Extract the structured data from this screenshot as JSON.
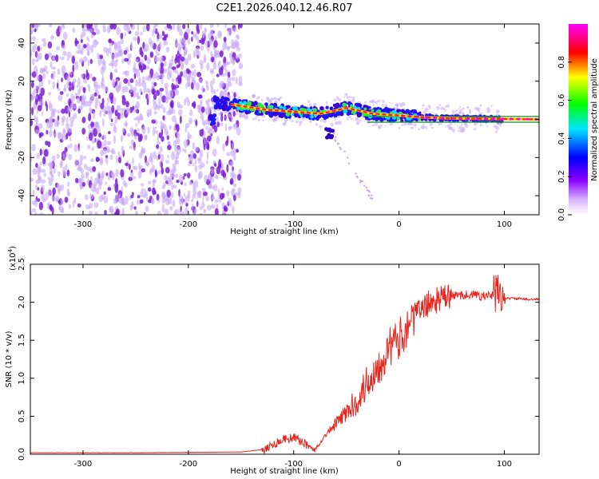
{
  "title": "C2E1.2026.040.12.46.R07",
  "colors": {
    "trace": "#e8231c",
    "scatter_light": "#c7a7f5",
    "scatter_dark": "#7b1fd6",
    "track": "#1d9c2f"
  },
  "chart_data": [
    {
      "type": "heatmap",
      "title": "C2E1.2026.040.12.46.R07",
      "xlabel": "Height of straight line (km)",
      "ylabel": "Frequency (Hz)",
      "xlim": [
        -350,
        133
      ],
      "ylim": [
        -50,
        50
      ],
      "xticks": [
        -300,
        -200,
        -100,
        0,
        100
      ],
      "xtick_labels": [
        "-300",
        "-200",
        "-100",
        "0",
        "100"
      ],
      "yticks": [
        -40,
        -20,
        0,
        20,
        40
      ],
      "ytick_labels": [
        "-40",
        "-20",
        "0",
        "20",
        "40"
      ],
      "noise_region_x": [
        -350,
        -150
      ],
      "signal_track": {
        "x": [
          -175,
          -150,
          -125,
          -100,
          -75,
          -65,
          -50,
          -25,
          0,
          25,
          50,
          75,
          100,
          133
        ],
        "frequency": [
          9,
          7,
          5,
          4,
          3,
          4,
          6,
          3,
          2,
          1,
          0.5,
          0.3,
          0.2,
          0
        ]
      },
      "colorbar": {
        "label": "Normalized spectral amplitude",
        "range": [
          0,
          1
        ],
        "ticks": [
          0.0,
          0.2,
          0.4,
          0.6,
          0.8
        ],
        "tick_labels": [
          "0.0",
          "0.2",
          "0.4",
          "0.6",
          "0.8"
        ],
        "colormap": [
          "#ffffff",
          "#8a00ff",
          "#0000ff",
          "#00e5ff",
          "#00ff00",
          "#ffff00",
          "#ff0000",
          "#ff00ff"
        ]
      }
    },
    {
      "type": "line",
      "xlabel": "Height of straight line (km)",
      "ylabel": "SNR (10 * v/v)",
      "yscale_label": "(x10",
      "yscale_exp": "4",
      "yscale_close": ")",
      "xlim": [
        -350,
        133
      ],
      "ylim": [
        0,
        2.5
      ],
      "xticks": [
        -300,
        -200,
        -100,
        0,
        100
      ],
      "xtick_labels": [
        "-300",
        "-200",
        "-100",
        "0",
        "100"
      ],
      "yticks": [
        0.0,
        0.5,
        1.0,
        1.5,
        2.0,
        2.5
      ],
      "ytick_labels": [
        "0.0",
        "0.5",
        "1.0",
        "1.5",
        "2.0",
        "2.5"
      ],
      "series": [
        {
          "name": "SNR",
          "x": [
            -350,
            -250,
            -150,
            -130,
            -120,
            -110,
            -100,
            -90,
            -80,
            -70,
            -60,
            -50,
            -40,
            -30,
            -20,
            -10,
            0,
            10,
            20,
            30,
            40,
            50,
            60,
            70,
            80,
            90,
            95,
            100,
            110,
            120,
            133
          ],
          "y": [
            0.02,
            0.02,
            0.03,
            0.06,
            0.12,
            0.2,
            0.22,
            0.15,
            0.05,
            0.25,
            0.4,
            0.55,
            0.7,
            0.95,
            1.15,
            1.4,
            1.5,
            1.75,
            1.9,
            2.0,
            2.05,
            2.08,
            2.1,
            2.1,
            2.08,
            2.09,
            2.15,
            2.05,
            2.05,
            2.04,
            2.04
          ]
        }
      ]
    }
  ]
}
